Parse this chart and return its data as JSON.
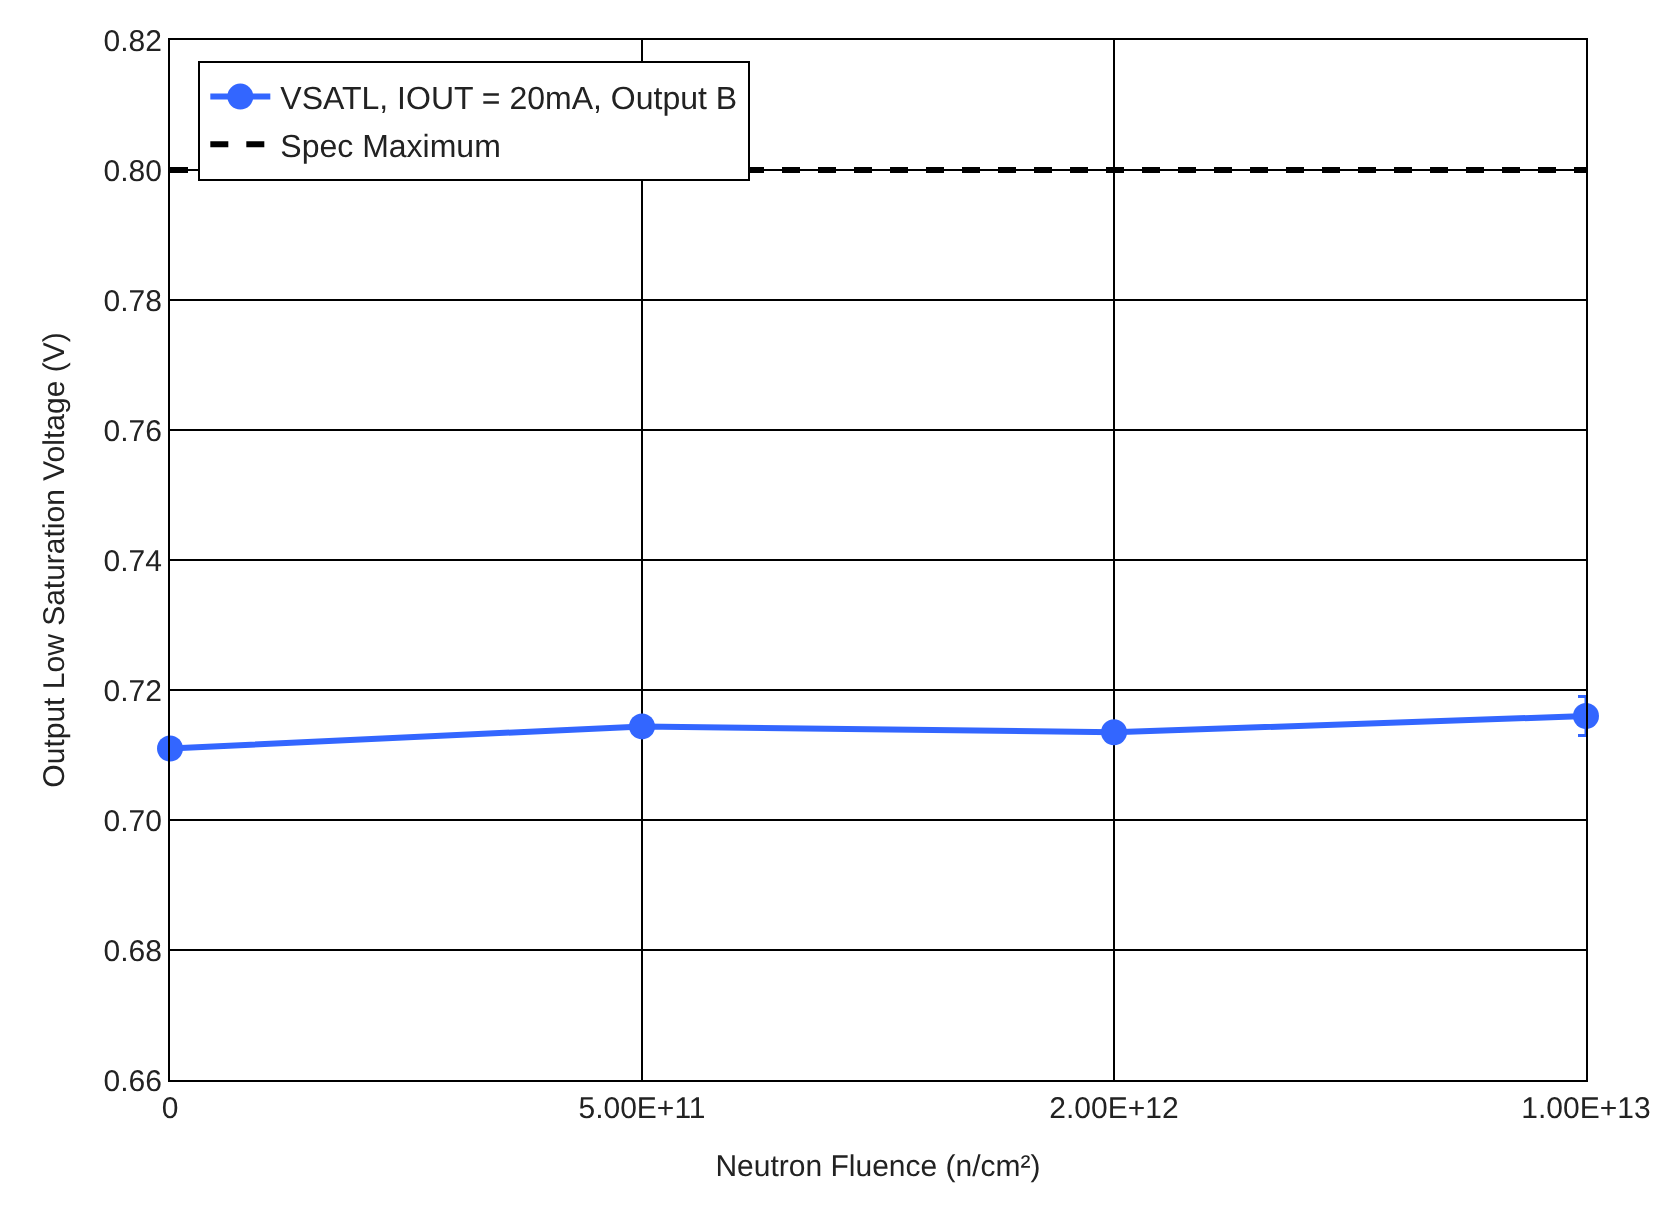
{
  "chart_data": {
    "type": "line",
    "xlabel": "Neutron Fluence (n/cm²)",
    "ylabel": "Output Low Saturation Voltage (V)",
    "categories": [
      "0",
      "5.00E+11",
      "2.00E+12",
      "1.00E+13"
    ],
    "series": [
      {
        "name": "VSATL, IOUT = 20mA, Output B",
        "color": "#3366ff",
        "values": [
          0.711,
          0.7144,
          0.7135,
          0.716
        ],
        "errors": [
          null,
          null,
          null,
          0.003
        ],
        "marker": "circle",
        "line_style": "solid"
      },
      {
        "name": "Spec Maximum",
        "color": "#000000",
        "values": [
          0.8,
          null,
          0.8,
          0.8
        ],
        "marker": "none",
        "line_style": "dashed"
      }
    ],
    "ylim": [
      0.66,
      0.82
    ],
    "yticks": [
      {
        "value": 0.66,
        "label": "0.66"
      },
      {
        "value": 0.68,
        "label": "0.68"
      },
      {
        "value": 0.7,
        "label": "0.70"
      },
      {
        "value": 0.72,
        "label": "0.72"
      },
      {
        "value": 0.74,
        "label": "0.74"
      },
      {
        "value": 0.76,
        "label": "0.76"
      },
      {
        "value": 0.78,
        "label": "0.78"
      },
      {
        "value": 0.8,
        "label": "0.80"
      },
      {
        "value": 0.82,
        "label": "0.82"
      }
    ],
    "grid": true,
    "legend": "top left"
  }
}
